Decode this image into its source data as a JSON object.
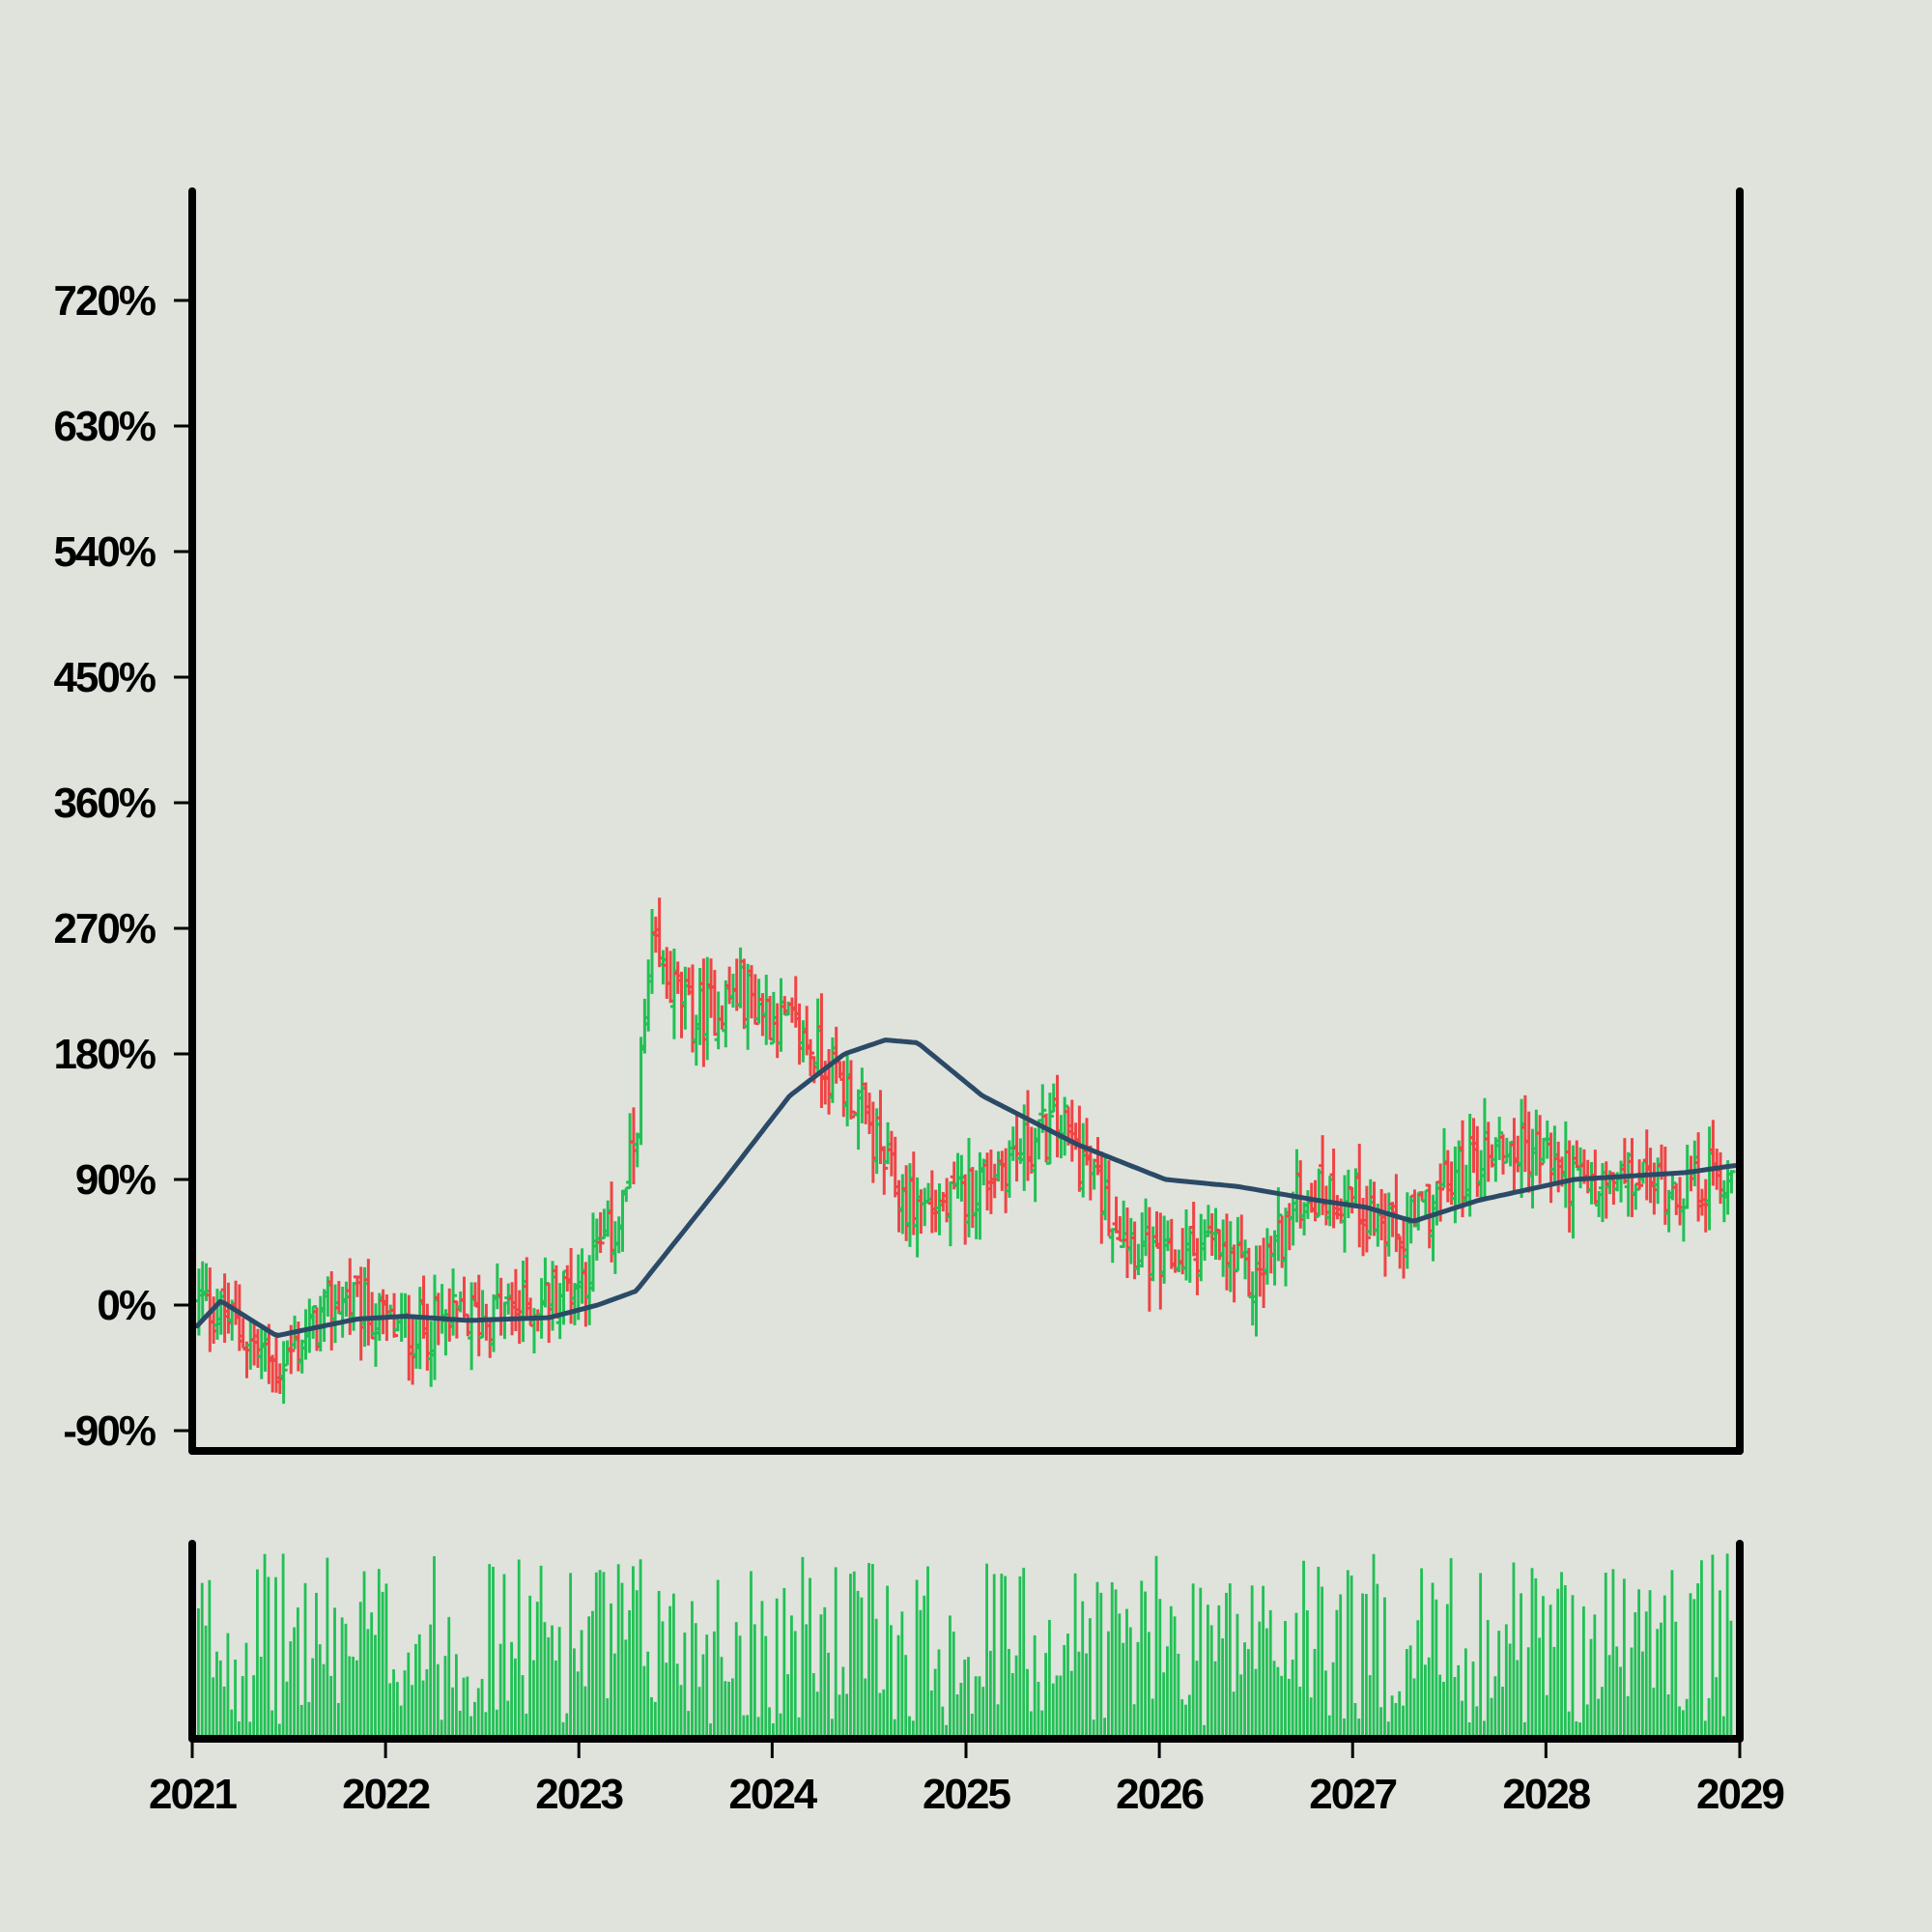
{
  "colors": {
    "background": "#dfe3dc",
    "up": "#22c055",
    "down": "#ef4444",
    "moving_average": "#2b4a66",
    "volume": "#22c055",
    "axis": "#000000"
  },
  "chart_data": {
    "type": "ohlc",
    "title": "",
    "xlabel": "",
    "ylabel": "",
    "x_range": [
      "2021-01-01",
      "2029-01-01"
    ],
    "ylim": [
      -90,
      800
    ],
    "y_tick_values": [
      -90,
      0,
      90,
      180,
      270,
      360,
      450,
      540,
      630,
      720
    ],
    "y_tick_labels": [
      "-90%",
      "0%",
      "90%",
      "180%",
      "270%",
      "360%",
      "450%",
      "540%",
      "630%",
      "720%"
    ],
    "x_tick_values": [
      "2021-01-01",
      "2022-01-01",
      "2023-01-01",
      "2024-01-01",
      "2025-01-01",
      "2026-01-01",
      "2027-01-01",
      "2028-01-01",
      "2029-01-01"
    ],
    "x_tick_labels": [
      "2021",
      "2022",
      "2023",
      "2024",
      "2025",
      "2026",
      "2027",
      "2028",
      "2029"
    ],
    "price_anchors": {
      "dates": [
        "2021-01-01",
        "2021-03-01",
        "2021-06-01",
        "2021-10-01",
        "2022-02-01",
        "2022-06-01",
        "2022-10-01",
        "2023-01-01",
        "2023-03-15",
        "2023-04-10",
        "2023-05-15",
        "2023-08-01",
        "2023-11-01",
        "2024-03-01",
        "2024-06-01",
        "2024-09-01",
        "2024-12-01",
        "2025-03-01",
        "2025-07-01",
        "2025-10-01",
        "2026-01-01",
        "2026-04-01",
        "2026-07-01",
        "2026-10-01",
        "2027-01-01",
        "2027-04-01",
        "2027-07-01",
        "2027-10-01",
        "2028-01-01",
        "2028-04-01",
        "2028-07-01",
        "2028-10-01",
        "2028-12-31"
      ],
      "values": [
        5,
        -10,
        -45,
        5,
        -20,
        -10,
        0,
        20,
        60,
        110,
        250,
        205,
        225,
        190,
        150,
        75,
        70,
        100,
        130,
        70,
        25,
        45,
        15,
        80,
        80,
        45,
        85,
        115,
        110,
        80,
        90,
        85,
        95
      ]
    },
    "moving_average": {
      "name": "",
      "dates": [
        "2021-01-01",
        "2021-02-15",
        "2021-06-01",
        "2021-11-01",
        "2022-02-01",
        "2022-06-01",
        "2022-11-01",
        "2023-02-01",
        "2023-04-15",
        "2023-10-01",
        "2024-02-01",
        "2024-05-15",
        "2024-08-01",
        "2024-10-01",
        "2025-02-01",
        "2025-08-01",
        "2026-01-15",
        "2026-06-01",
        "2026-11-01",
        "2027-02-01",
        "2027-05-01",
        "2027-09-01",
        "2028-03-01",
        "2028-10-01",
        "2028-12-31"
      ],
      "values": [
        -15,
        3,
        -22,
        -10,
        -8,
        -11,
        -9,
        0,
        10,
        90,
        150,
        180,
        190,
        188,
        150,
        115,
        90,
        85,
        75,
        70,
        60,
        75,
        90,
        95,
        100
      ]
    },
    "volume": {
      "ylim": [
        0,
        100
      ],
      "note_scale": "relative"
    },
    "grid": false,
    "legend": "none"
  }
}
